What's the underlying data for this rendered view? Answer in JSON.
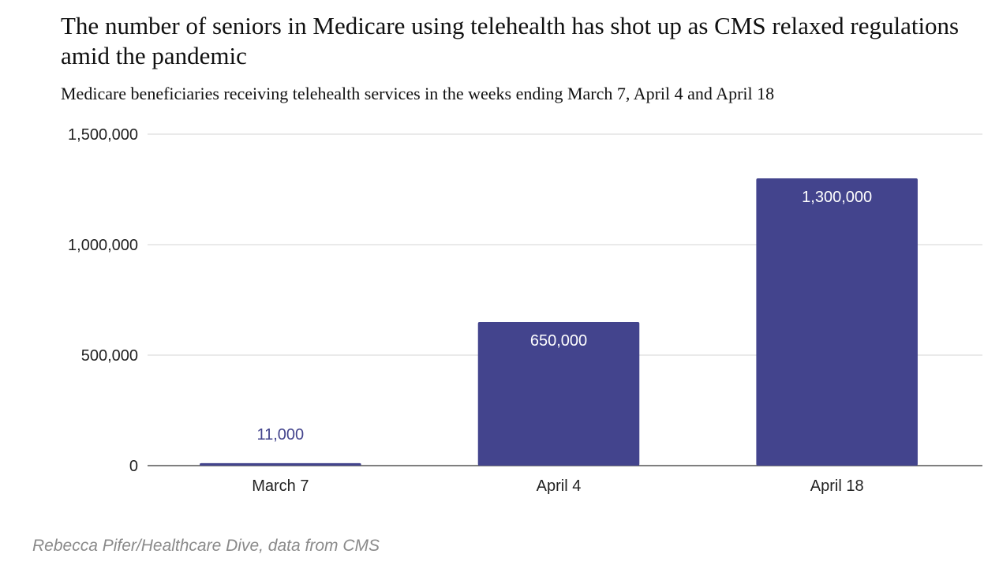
{
  "header": {
    "title": "The number of seniors in Medicare using telehealth has shot up as CMS relaxed regulations amid the pandemic",
    "subtitle": "Medicare beneficiaries receiving telehealth services in the weeks ending March 7, April 4 and April 18"
  },
  "chart_data": {
    "type": "bar",
    "title": "The number of seniors in Medicare using telehealth has shot up as CMS relaxed regulations amid the pandemic",
    "subtitle": "Medicare beneficiaries receiving telehealth services in the weeks ending March 7, April 4 and April 18",
    "categories": [
      "March 7",
      "April 4",
      "April 18"
    ],
    "values": [
      11000,
      650000,
      1300000
    ],
    "data_labels": [
      "11,000",
      "650,000",
      "1,300,000"
    ],
    "yticks": [
      0,
      500000,
      1000000,
      1500000
    ],
    "ytick_labels": [
      "0",
      "500,000",
      "1,000,000",
      "1,500,000"
    ],
    "ylim": [
      0,
      1500000
    ],
    "xlabel": "",
    "ylabel": "",
    "grid": true,
    "legend": "none",
    "bar_color": "#43448d",
    "label_inside_color": "#ffffff",
    "label_outside_color": "#43448d"
  },
  "footer": {
    "source": "Rebecca Pifer/Healthcare Dive, data from CMS"
  }
}
